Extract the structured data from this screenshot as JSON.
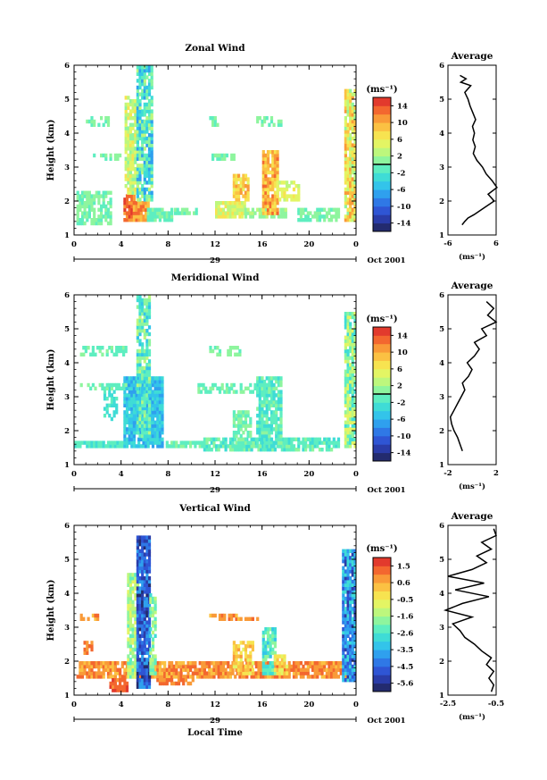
{
  "figure": {
    "xlabel": "Local Time",
    "date_label": "29",
    "month_label": "Oct 2001",
    "unit_label": "(ms⁻¹)",
    "avg_unit": "(ms⁻¹)"
  },
  "chart_data": [
    {
      "type": "heatmap",
      "title": "Zonal Wind",
      "ylabel": "Height (km)",
      "x_ticks": [
        "0",
        "4",
        "8",
        "12",
        "16",
        "20",
        "0"
      ],
      "y_ticks": [
        "1",
        "2",
        "3",
        "4",
        "5",
        "6"
      ],
      "xlim": [
        0,
        24
      ],
      "ylim": [
        1,
        6
      ],
      "colorbar": {
        "unit": "(ms⁻¹)",
        "ticks": [
          "14",
          "10",
          "6",
          "2",
          "-2",
          "-6",
          "-10",
          "-14"
        ],
        "range": [
          -16,
          16
        ],
        "zero_line": 0
      },
      "average": {
        "title": "Average",
        "x_ticks": [
          "-6",
          "6"
        ],
        "xlim": [
          -6,
          6
        ],
        "profile_height_km": [
          1.3,
          1.4,
          1.5,
          1.6,
          1.8,
          2.0,
          2.2,
          2.4,
          2.6,
          2.8,
          3.0,
          3.2,
          3.4,
          3.6,
          3.8,
          4.0,
          4.2,
          4.4,
          4.6,
          4.8,
          5.0,
          5.2,
          5.4,
          5.5,
          5.6,
          5.7
        ],
        "profile_value": [
          -2.5,
          -1.8,
          -1.0,
          0.5,
          3.0,
          5.5,
          4.0,
          6.2,
          5.0,
          3.5,
          2.6,
          1.2,
          0.3,
          0.8,
          0.2,
          0.6,
          0.1,
          0.9,
          0.2,
          -0.5,
          -1.0,
          -1.8,
          -0.3,
          -2.8,
          -1.5,
          -3.0
        ]
      }
    },
    {
      "type": "heatmap",
      "title": "Meridional Wind",
      "ylabel": "Height (km)",
      "x_ticks": [
        "0",
        "4",
        "8",
        "12",
        "16",
        "20",
        "0"
      ],
      "y_ticks": [
        "1",
        "2",
        "3",
        "4",
        "5",
        "6"
      ],
      "xlim": [
        0,
        24
      ],
      "ylim": [
        1,
        6
      ],
      "colorbar": {
        "unit": "(ms⁻¹)",
        "ticks": [
          "14",
          "10",
          "6",
          "2",
          "-2",
          "-6",
          "-10",
          "-14"
        ],
        "range": [
          -16,
          16
        ],
        "zero_line": 0
      },
      "average": {
        "title": "Average",
        "x_ticks": [
          "-2",
          "2"
        ],
        "xlim": [
          -2,
          2
        ],
        "profile_height_km": [
          1.4,
          1.6,
          1.8,
          2.0,
          2.2,
          2.4,
          2.6,
          2.8,
          3.0,
          3.2,
          3.4,
          3.6,
          3.8,
          4.0,
          4.2,
          4.4,
          4.6,
          4.8,
          5.0,
          5.2,
          5.4,
          5.6,
          5.8
        ],
        "profile_value": [
          -0.8,
          -1.0,
          -1.2,
          -1.5,
          -1.7,
          -1.8,
          -1.5,
          -1.2,
          -0.9,
          -0.6,
          -0.8,
          -0.3,
          0.0,
          -0.4,
          0.2,
          0.6,
          0.2,
          1.2,
          0.8,
          2.0,
          1.3,
          1.8,
          1.2
        ]
      }
    },
    {
      "type": "heatmap",
      "title": "Vertical Wind",
      "ylabel": "Height (km)",
      "x_ticks": [
        "0",
        "4",
        "8",
        "12",
        "16",
        "20",
        "0"
      ],
      "y_ticks": [
        "1",
        "2",
        "3",
        "4",
        "5",
        "6"
      ],
      "xlim": [
        0,
        24
      ],
      "ylim": [
        1,
        6
      ],
      "colorbar": {
        "unit": "(ms⁻¹)",
        "ticks": [
          "1.5",
          "0.6",
          "-0.5",
          "-1.6",
          "-2.6",
          "-3.5",
          "-4.5",
          "-5.6"
        ],
        "range": [
          -6.0,
          2.0
        ]
      },
      "average": {
        "title": "Average",
        "x_ticks": [
          "-2.5",
          "-0.5"
        ],
        "xlim": [
          -2.5,
          -0.5
        ],
        "profile_height_km": [
          1.1,
          1.3,
          1.5,
          1.7,
          1.9,
          2.1,
          2.3,
          2.5,
          2.7,
          2.9,
          3.1,
          3.3,
          3.5,
          3.7,
          3.9,
          4.1,
          4.3,
          4.5,
          4.7,
          4.9,
          5.1,
          5.3,
          5.5,
          5.7,
          5.9
        ],
        "profile_value": [
          -0.7,
          -0.6,
          -0.8,
          -0.6,
          -0.9,
          -0.7,
          -1.1,
          -1.4,
          -1.8,
          -2.0,
          -2.3,
          -1.5,
          -2.6,
          -1.9,
          -0.8,
          -2.2,
          -1.0,
          -2.5,
          -1.5,
          -0.9,
          -1.3,
          -0.7,
          -1.1,
          -0.5,
          -0.6
        ]
      }
    }
  ]
}
